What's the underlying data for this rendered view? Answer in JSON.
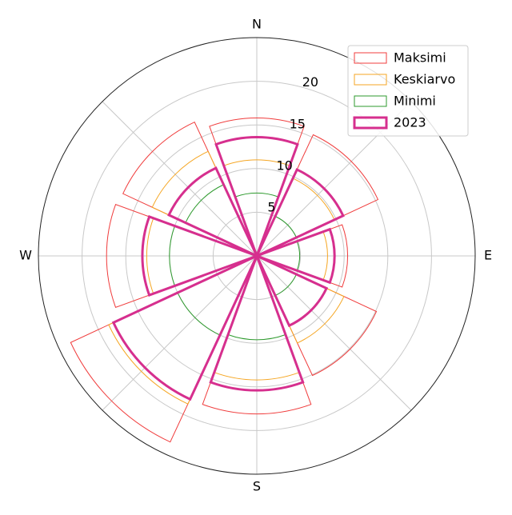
{
  "chart_data": {
    "type": "polar-bar",
    "categories": [
      "N",
      null,
      "E",
      null,
      "S",
      null,
      "W",
      null
    ],
    "series": [
      {
        "name": "Maksimi",
        "color": "#f03c3c",
        "line_width": 1,
        "values": [
          15.8,
          15.3,
          10.4,
          15.1,
          18.1,
          23.5,
          17.2,
          16.9
        ]
      },
      {
        "name": "Keskiarvo",
        "color": "#f5a623",
        "line_width": 1,
        "values": [
          11,
          9.8,
          8.1,
          11,
          14.2,
          18.7,
          12.6,
          13.2
        ]
      },
      {
        "name": "Minimi",
        "color": "#2e9a2e",
        "line_width": 1,
        "values": [
          7.2,
          5,
          4.9,
          5,
          9.6,
          10,
          10,
          9
        ]
      },
      {
        "name": "2023",
        "color": "#d62f8e",
        "line_width": 3,
        "values": [
          13.6,
          10.9,
          8.9,
          8.8,
          15.4,
          18.1,
          13.1,
          11.1
        ]
      }
    ],
    "ylim": [
      0,
      25
    ],
    "yticks": [
      5,
      10,
      15,
      20
    ],
    "grid": true,
    "legend": "upper right"
  }
}
